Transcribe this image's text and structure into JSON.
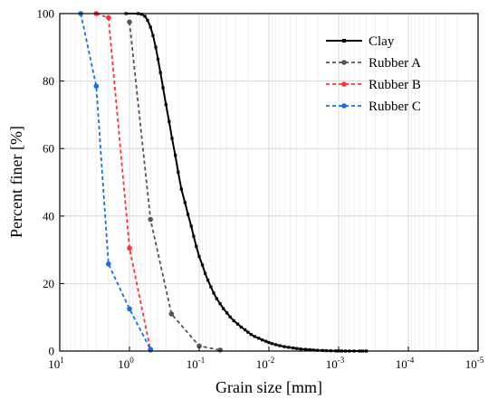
{
  "chart_data": {
    "type": "line",
    "xlabel": "Grain size [mm]",
    "ylabel": "Percent finer [%]",
    "xscale": "log",
    "xreversed": true,
    "xlim": [
      10,
      1e-05
    ],
    "ylim": [
      0,
      100
    ],
    "grid": true,
    "legend_position": "top-right",
    "x_ticks": [
      {
        "value": 10,
        "base": "10",
        "exp": "1"
      },
      {
        "value": 1,
        "base": "10",
        "exp": "0"
      },
      {
        "value": 0.1,
        "base": "10",
        "exp": "-1"
      },
      {
        "value": 0.01,
        "base": "10",
        "exp": "-2"
      },
      {
        "value": 0.001,
        "base": "10",
        "exp": "-3"
      },
      {
        "value": 0.0001,
        "base": "10",
        "exp": "-4"
      },
      {
        "value": 1e-05,
        "base": "10",
        "exp": "-5"
      }
    ],
    "y_ticks": [
      "0",
      "20",
      "40",
      "60",
      "80",
      "100"
    ],
    "series": [
      {
        "name": "Clay",
        "color": "#000000",
        "dash": "solid",
        "marker": "square",
        "x": [
          1.12,
          0.75,
          0.67,
          0.6,
          0.55,
          0.5,
          0.46,
          0.42,
          0.39,
          0.36,
          0.33,
          0.3,
          0.27,
          0.245,
          0.22,
          0.2,
          0.18,
          0.16,
          0.145,
          0.13,
          0.12,
          0.11,
          0.1,
          0.09,
          0.082,
          0.075,
          0.068,
          0.062,
          0.056,
          0.05,
          0.045,
          0.04,
          0.036,
          0.032,
          0.028,
          0.025,
          0.022,
          0.02,
          0.018,
          0.016,
          0.014,
          0.0125,
          0.011,
          0.01,
          0.009,
          0.008,
          0.007,
          0.006,
          0.0052,
          0.0045,
          0.004,
          0.0035,
          0.003,
          0.0026,
          0.0023,
          0.002,
          0.0017,
          0.0015,
          0.0013,
          0.0011,
          0.001,
          0.0009,
          0.0008,
          0.0007,
          0.0006,
          0.0005,
          0.00045,
          0.0004
        ],
        "y": [
          100,
          100,
          99.8,
          99.2,
          98,
          96,
          93.5,
          90,
          86.5,
          82.5,
          78,
          73,
          68,
          63,
          58,
          53,
          48,
          44,
          40.5,
          37,
          34,
          31,
          28,
          25.5,
          23,
          21,
          19,
          17.2,
          15.5,
          14,
          12.6,
          11.3,
          10.1,
          9,
          8,
          7.1,
          6.3,
          5.6,
          4.9,
          4.3,
          3.8,
          3.3,
          2.9,
          2.5,
          2.2,
          1.9,
          1.6,
          1.3,
          1.1,
          0.9,
          0.75,
          0.6,
          0.5,
          0.4,
          0.3,
          0.22,
          0.16,
          0.11,
          0.07,
          0.04,
          0.02,
          0.01,
          0,
          0,
          0,
          0,
          0,
          0
        ]
      },
      {
        "name": "Rubber A",
        "color": "#555555",
        "dash": "dashed",
        "marker": "circle",
        "x": [
          1.0,
          0.5,
          0.25,
          0.1,
          0.05
        ],
        "y": [
          97.5,
          39,
          11,
          1.5,
          0.3
        ]
      },
      {
        "name": "Rubber B",
        "color": "#ff3333",
        "dash": "dashed",
        "marker": "circle",
        "x": [
          3.0,
          2.0,
          1.0,
          0.5
        ],
        "y": [
          100,
          98.8,
          30.5,
          0.3
        ]
      },
      {
        "name": "Rubber C",
        "color": "#1a6fe0",
        "dash": "dashed",
        "marker": "circle",
        "x": [
          5.0,
          3.0,
          2.0,
          1.0,
          0.5
        ],
        "y": [
          100,
          78.5,
          25.8,
          12.5,
          0.5
        ]
      }
    ]
  }
}
